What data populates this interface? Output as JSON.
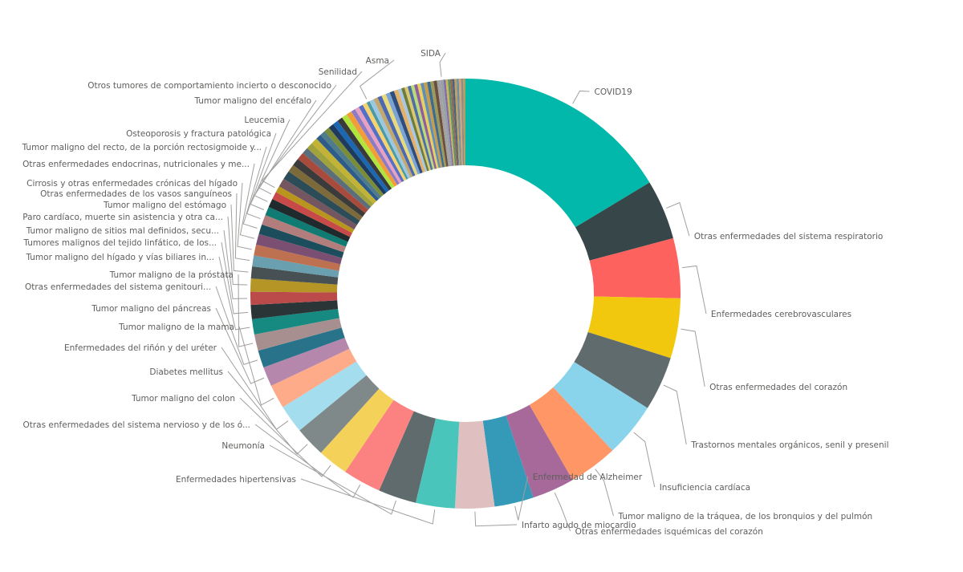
{
  "chart_data": {
    "type": "donut",
    "legend": "none",
    "labels_shown": "category names with leader lines",
    "slices": [
      {
        "name": "COVID19",
        "value": 20.0,
        "color": "#01B8AA"
      },
      {
        "name": "Otras enfermedades del sistema respiratorio",
        "value": 5.5,
        "color": "#374649"
      },
      {
        "name": "Enfermedades cerebrovasculares",
        "value": 5.5,
        "color": "#FD625E"
      },
      {
        "name": "Otras enfermedades del corazón",
        "value": 5.5,
        "color": "#F2C80F"
      },
      {
        "name": "Trastornos mentales orgánicos, senil y presenil",
        "value": 5.0,
        "color": "#5F6B6D"
      },
      {
        "name": "Insuficiencia cardíaca",
        "value": 5.0,
        "color": "#8AD4EB"
      },
      {
        "name": "Tumor maligno de la tráquea, de los bronquios y del pulmón",
        "value": 4.5,
        "color": "#FE9666"
      },
      {
        "name": "Otras enfermedades isquémicas del corazón",
        "value": 3.9,
        "color": "#A66999"
      },
      {
        "name": "Enfermedad de Alzheimer",
        "value": 3.6,
        "color": "#3599B8"
      },
      {
        "name": "Infarto agudo de miocardio",
        "value": 3.6,
        "color": "#DFBFBF"
      },
      {
        "name": "Enfermedades hipertensivas",
        "value": 3.6,
        "color": "#4AC5BB"
      },
      {
        "name": "Neumonía",
        "value": 3.5,
        "color": "#5F6B6D"
      },
      {
        "name": "Otras enfermedades del sistema nervioso y de los ó...",
        "value": 3.5,
        "color": "#FB8281"
      },
      {
        "name": "Tumor maligno del colon",
        "value": 2.8,
        "color": "#F4D25A"
      },
      {
        "name": "Diabetes mellitus",
        "value": 2.8,
        "color": "#7F898A"
      },
      {
        "name": "Enfermedades del riñón y del uréter",
        "value": 2.6,
        "color": "#A4DDEE"
      },
      {
        "name": "Tumor maligno de la mama",
        "value": 2.2,
        "color": "#FDAB89"
      },
      {
        "name": "Tumor maligno del páncreas",
        "value": 1.8,
        "color": "#B687AC"
      },
      {
        "name": "Otras enfermedades del sistema genitouri...",
        "value": 1.6,
        "color": "#28738A"
      },
      {
        "name": "Tumor maligno de la próstata",
        "value": 1.5,
        "color": "#A78F8F"
      },
      {
        "name": "Tumor maligno del hígado y vías biliares in...",
        "value": 1.4,
        "color": "#168980"
      },
      {
        "name": "Tumores malignos del tejido linfático, de los...",
        "value": 1.3,
        "color": "#293537"
      },
      {
        "name": "Tumor maligno de sitios mal definidos, secu...",
        "value": 1.2,
        "color": "#BB4A4A"
      },
      {
        "name": "Paro cardíaco, muerte sin asistencia y otra ca...",
        "value": 1.2,
        "color": "#B59525"
      },
      {
        "name": "Tumor maligno del estómago",
        "value": 1.1,
        "color": "#475052"
      },
      {
        "name": "Otras enfermedades de los vasos sanguíneos",
        "value": 1.0,
        "color": "#6A9FB0"
      },
      {
        "name": "Cirrosis y otras enfermedades crónicas del hígado",
        "value": 1.0,
        "color": "#BD7150"
      },
      {
        "name": "Otras enfermedades endocrinas, nutricionales y me...",
        "value": 1.0,
        "color": "#7B4F71"
      },
      {
        "name": "Tumor maligno del recto, de la porción rectosigmoide y...",
        "value": 0.9,
        "color": "#1B4D5C"
      },
      {
        "name": "Osteoporosis y fractura patológica",
        "value": 0.9,
        "color": "#B27D7D"
      },
      {
        "name": "Leucemia",
        "value": 0.8,
        "color": "#0F7B73"
      },
      {
        "name": "Tumor maligno del encéfalo",
        "value": 0.8,
        "color": "#1F2A2C"
      },
      {
        "name": "Otros tumores de comportamiento incierto o desconocido",
        "value": 0.7,
        "color": "#C84A48"
      },
      {
        "name": "Senilidad",
        "value": 0.6,
        "color": "#B8951C"
      },
      {
        "name": "Asma",
        "value": 0.3,
        "color": "#4A9BA5"
      },
      {
        "name": "SIDA",
        "value": 0.3,
        "color": "#9AA0A6"
      }
    ],
    "small_slices_unlabeled": [
      {
        "value": 0.8,
        "color": "#745660"
      },
      {
        "value": 0.8,
        "color": "#2C4C57"
      },
      {
        "value": 0.7,
        "color": "#7D6A3A"
      },
      {
        "value": 0.7,
        "color": "#3B3B3B"
      },
      {
        "value": 0.7,
        "color": "#A84B3D"
      },
      {
        "value": 0.6,
        "color": "#5C6E7A"
      },
      {
        "value": 0.6,
        "color": "#A0A33C"
      },
      {
        "value": 0.6,
        "color": "#C2B236"
      },
      {
        "value": 0.5,
        "color": "#2E5C8A"
      },
      {
        "value": 0.5,
        "color": "#4F7C8A"
      },
      {
        "value": 0.5,
        "color": "#7A8C35"
      },
      {
        "value": 0.5,
        "color": "#1F3A5F"
      },
      {
        "value": 0.5,
        "color": "#1B68B0"
      },
      {
        "value": 0.5,
        "color": "#3A3A3A"
      },
      {
        "value": 0.5,
        "color": "#B1E43C"
      },
      {
        "value": 0.5,
        "color": "#F39C3A"
      },
      {
        "value": 0.4,
        "color": "#8C7BC6"
      },
      {
        "value": 0.4,
        "color": "#E7A1C2"
      },
      {
        "value": 0.4,
        "color": "#5470C6"
      },
      {
        "value": 0.4,
        "color": "#F6D36F"
      },
      {
        "value": 0.4,
        "color": "#9BC7E3"
      },
      {
        "value": 0.4,
        "color": "#C3A86E"
      },
      {
        "value": 0.4,
        "color": "#4B68B1"
      },
      {
        "value": 0.4,
        "color": "#E8D97A"
      },
      {
        "value": 0.4,
        "color": "#7BA3D6"
      },
      {
        "value": 0.4,
        "color": "#2F4E7C"
      },
      {
        "value": 0.4,
        "color": "#E3B16A"
      },
      {
        "value": 0.3,
        "color": "#A6C8E6"
      },
      {
        "value": 0.3,
        "color": "#6F7C3B"
      },
      {
        "value": 0.3,
        "color": "#D9C86D"
      },
      {
        "value": 0.3,
        "color": "#4C6FA5"
      },
      {
        "value": 0.3,
        "color": "#B9DA76"
      },
      {
        "value": 0.3,
        "color": "#8E5E9E"
      },
      {
        "value": 0.3,
        "color": "#E9CF5B"
      },
      {
        "value": 0.3,
        "color": "#5F8FB5"
      },
      {
        "value": 0.3,
        "color": "#C79C4B"
      },
      {
        "value": 0.3,
        "color": "#3D6C8F"
      },
      {
        "value": 0.3,
        "color": "#9A9A5A"
      },
      {
        "value": 0.3,
        "color": "#6B4E3D"
      },
      {
        "value": 0.3,
        "color": "#A2A2A2"
      },
      {
        "value": 0.2,
        "color": "#7E6EA8"
      },
      {
        "value": 0.2,
        "color": "#C9B458"
      },
      {
        "value": 0.2,
        "color": "#5A8F6B"
      },
      {
        "value": 0.2,
        "color": "#8F6A4E"
      },
      {
        "value": 0.2,
        "color": "#4E5F7E"
      },
      {
        "value": 0.2,
        "color": "#B8A25E"
      },
      {
        "value": 0.2,
        "color": "#6E8E9F"
      },
      {
        "value": 0.2,
        "color": "#D4A373"
      },
      {
        "value": 0.2,
        "color": "#8C8C8C"
      },
      {
        "value": 0.2,
        "color": "#AFA05F"
      }
    ]
  }
}
